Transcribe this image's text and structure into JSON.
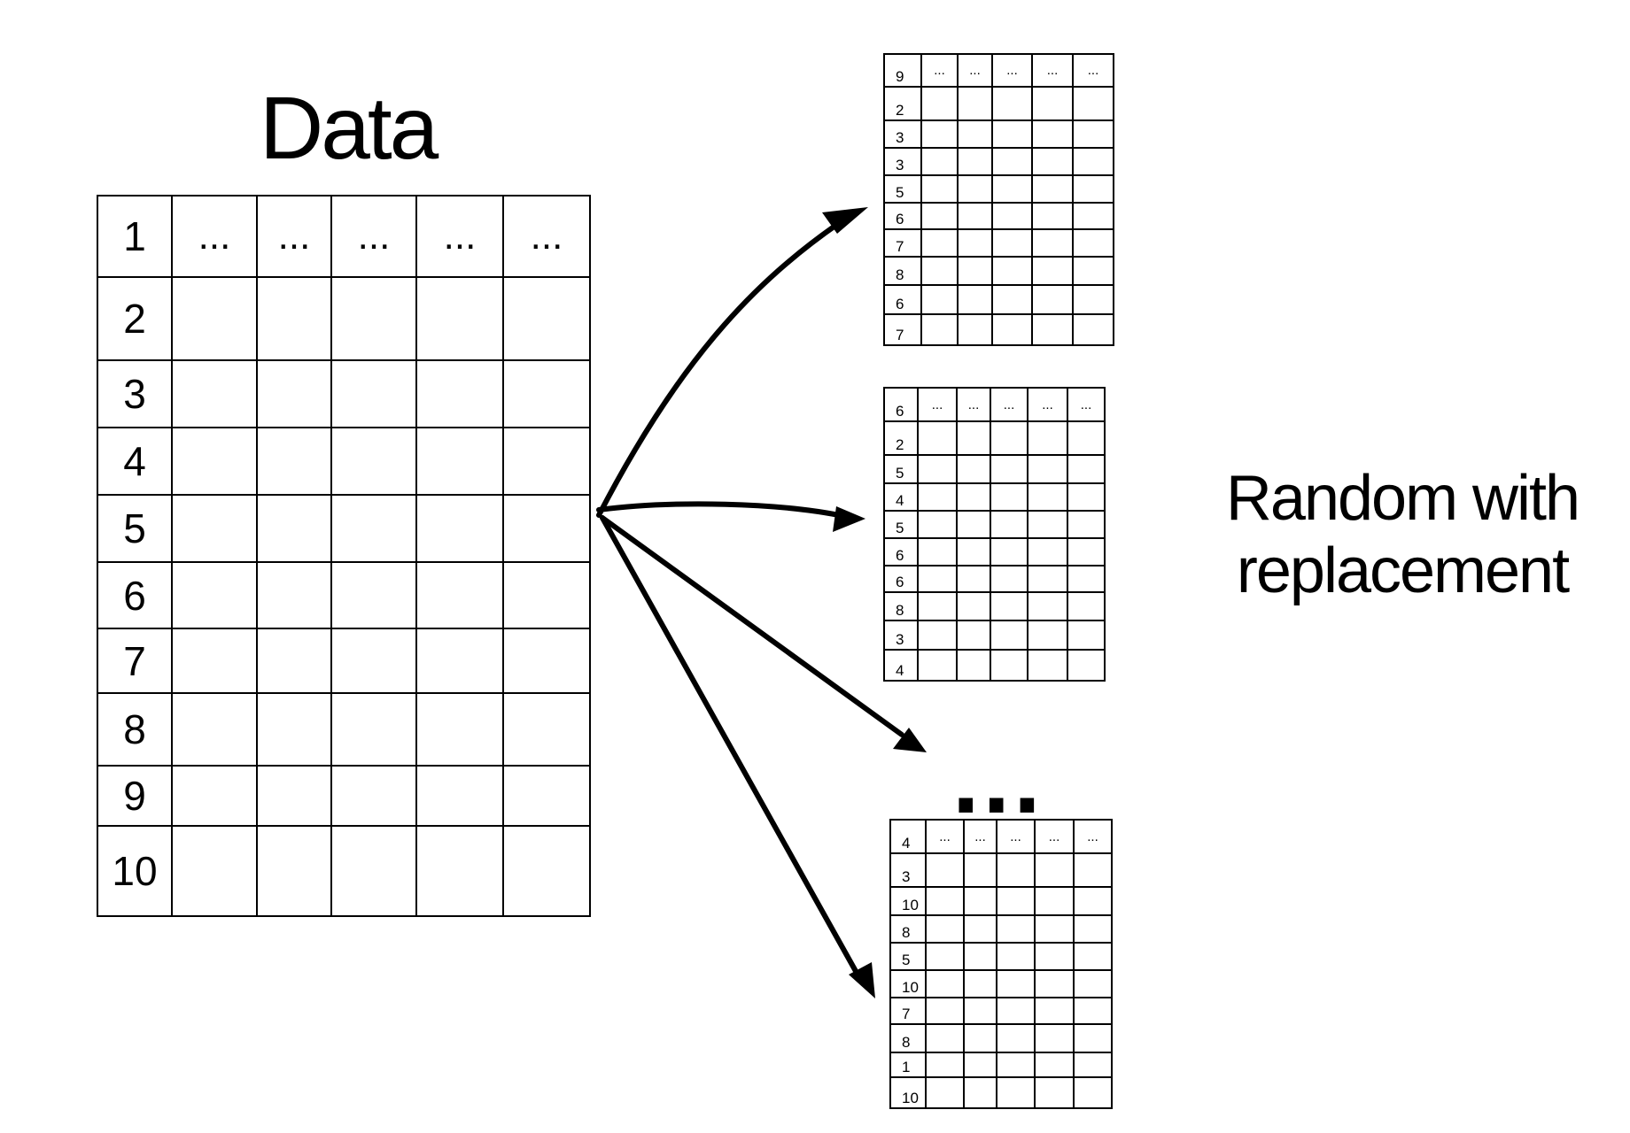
{
  "title": "Data",
  "note_lines": [
    "Random with",
    "replacement"
  ],
  "ellipsis": "...",
  "cell_ellipsis": "...",
  "data_table": {
    "columns": 6,
    "row_ids": [
      "1",
      "2",
      "3",
      "4",
      "5",
      "6",
      "7",
      "8",
      "9",
      "10"
    ]
  },
  "samples": [
    {
      "row_ids": [
        "9",
        "2",
        "3",
        "3",
        "5",
        "6",
        "7",
        "8",
        "6",
        "7"
      ]
    },
    {
      "row_ids": [
        "6",
        "2",
        "5",
        "4",
        "5",
        "6",
        "6",
        "8",
        "3",
        "4"
      ]
    },
    {
      "row_ids": [
        "4",
        "3",
        "10",
        "8",
        "5",
        "10",
        "7",
        "8",
        "1",
        "10"
      ]
    }
  ]
}
